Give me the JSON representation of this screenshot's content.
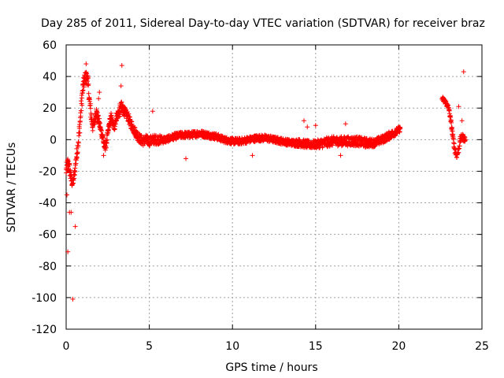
{
  "chart_data": {
    "type": "scatter",
    "title": "Day 285 of 2011, Sidereal Day-to-day VTEC variation (SDTVAR) for receiver braz",
    "xlabel": "GPS time / hours",
    "ylabel": "SDTVAR / TECUs",
    "xlim": [
      0,
      25
    ],
    "ylim": [
      -120,
      60
    ],
    "xticks": [
      "0",
      "5",
      "10",
      "15",
      "20",
      "25"
    ],
    "yticks": [
      "60",
      "40",
      "20",
      "0",
      "-20",
      "-40",
      "-60",
      "-80",
      "-100",
      "-120"
    ],
    "grid": true,
    "marker": "+",
    "series_color": "#ff0000",
    "series": [
      {
        "name": "SDTVAR",
        "dense_trend": [
          [
            0.0,
            -20,
            8
          ],
          [
            0.1,
            -15,
            8
          ],
          [
            0.2,
            -18,
            8
          ],
          [
            0.3,
            -25,
            8
          ],
          [
            0.4,
            -28,
            6
          ],
          [
            0.5,
            -22,
            6
          ],
          [
            0.6,
            -12,
            8
          ],
          [
            0.7,
            -4,
            8
          ],
          [
            0.8,
            6,
            10
          ],
          [
            0.9,
            20,
            10
          ],
          [
            1.0,
            32,
            10
          ],
          [
            1.1,
            38,
            8
          ],
          [
            1.2,
            40,
            8
          ],
          [
            1.3,
            38,
            8
          ],
          [
            1.4,
            25,
            8
          ],
          [
            1.5,
            15,
            8
          ],
          [
            1.6,
            8,
            6
          ],
          [
            1.7,
            12,
            8
          ],
          [
            1.8,
            18,
            8
          ],
          [
            1.9,
            14,
            6
          ],
          [
            2.0,
            10,
            6
          ],
          [
            2.1,
            5,
            6
          ],
          [
            2.2,
            2,
            6
          ],
          [
            2.3,
            -5,
            6
          ],
          [
            2.4,
            -3,
            6
          ],
          [
            2.5,
            3,
            6
          ],
          [
            2.6,
            10,
            6
          ],
          [
            2.7,
            14,
            6
          ],
          [
            2.8,
            10,
            6
          ],
          [
            2.9,
            8,
            6
          ],
          [
            3.0,
            14,
            6
          ],
          [
            3.1,
            16,
            6
          ],
          [
            3.2,
            18,
            8
          ],
          [
            3.3,
            20,
            8
          ],
          [
            3.4,
            20,
            8
          ],
          [
            3.5,
            18,
            6
          ],
          [
            3.6,
            16,
            6
          ],
          [
            3.7,
            15,
            6
          ],
          [
            3.8,
            12,
            6
          ],
          [
            4.0,
            8,
            6
          ],
          [
            4.2,
            4,
            6
          ],
          [
            4.4,
            1,
            6
          ],
          [
            4.6,
            -1,
            6
          ],
          [
            4.8,
            0,
            6
          ],
          [
            5.0,
            -1,
            6
          ],
          [
            5.2,
            0,
            6
          ],
          [
            5.5,
            0,
            6
          ],
          [
            6.0,
            0,
            4
          ],
          [
            6.5,
            2,
            4
          ],
          [
            7.0,
            3,
            4
          ],
          [
            7.5,
            3,
            4
          ],
          [
            8.0,
            4,
            4
          ],
          [
            8.5,
            3,
            4
          ],
          [
            9.0,
            2,
            4
          ],
          [
            9.5,
            0,
            4
          ],
          [
            10.0,
            -1,
            4
          ],
          [
            10.5,
            -1,
            4
          ],
          [
            11.0,
            0,
            4
          ],
          [
            11.5,
            1,
            4
          ],
          [
            12.0,
            1,
            4
          ],
          [
            12.5,
            0,
            4
          ],
          [
            13.0,
            -1,
            4
          ],
          [
            13.5,
            -2,
            4
          ],
          [
            14.0,
            -2,
            5
          ],
          [
            14.5,
            -3,
            5
          ],
          [
            15.0,
            -3,
            5
          ],
          [
            15.5,
            -2,
            6
          ],
          [
            16.0,
            -1,
            6
          ],
          [
            16.5,
            -1,
            6
          ],
          [
            17.0,
            -1,
            6
          ],
          [
            17.5,
            -1,
            6
          ],
          [
            18.0,
            -2,
            6
          ],
          [
            18.5,
            -2,
            5
          ],
          [
            19.0,
            0,
            5
          ],
          [
            19.5,
            3,
            5
          ],
          [
            20.0,
            6,
            4
          ],
          [
            20.1,
            7,
            3
          ],
          [
            22.6,
            26,
            3
          ],
          [
            22.8,
            24,
            3
          ],
          [
            23.0,
            20,
            3
          ],
          [
            23.1,
            14,
            3
          ],
          [
            23.2,
            6,
            4
          ],
          [
            23.3,
            -2,
            4
          ],
          [
            23.4,
            -8,
            4
          ],
          [
            23.5,
            -10,
            4
          ],
          [
            23.6,
            -6,
            4
          ],
          [
            23.7,
            0,
            4
          ],
          [
            23.8,
            2,
            4
          ],
          [
            23.9,
            1,
            4
          ],
          [
            24.0,
            0,
            4
          ]
        ],
        "outliers": [
          [
            0.1,
            -71
          ],
          [
            0.2,
            -46
          ],
          [
            0.3,
            -46
          ],
          [
            0.4,
            -101
          ],
          [
            0.55,
            -55
          ],
          [
            1.2,
            48
          ],
          [
            3.35,
            47
          ],
          [
            3.3,
            34
          ],
          [
            5.2,
            18
          ],
          [
            7.2,
            -12
          ],
          [
            11.2,
            -10
          ],
          [
            14.3,
            12
          ],
          [
            14.5,
            8
          ],
          [
            15.0,
            9
          ],
          [
            16.5,
            -10
          ],
          [
            16.8,
            10
          ],
          [
            23.9,
            43
          ],
          [
            23.6,
            21
          ],
          [
            23.8,
            12
          ],
          [
            2.0,
            30
          ],
          [
            1.95,
            26
          ],
          [
            2.25,
            -10
          ],
          [
            0.05,
            -35
          ]
        ]
      }
    ]
  }
}
